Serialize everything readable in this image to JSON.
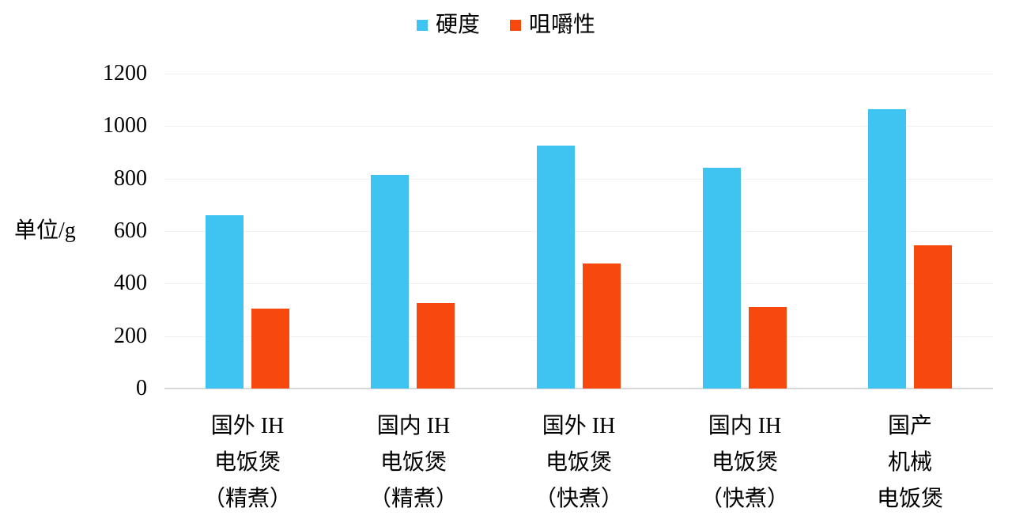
{
  "chart_data": {
    "type": "bar",
    "title": "",
    "ylabel": "单位/g",
    "xlabel": "",
    "ylim": [
      0,
      1200
    ],
    "ytick_step": 200,
    "yticks": [
      "0",
      "200",
      "400",
      "600",
      "800",
      "1000",
      "1200"
    ],
    "grid": true,
    "legend_position": "top-center",
    "categories": [
      "国外 IH 电饭煲（精煮）",
      "国内 IH 电饭煲（精煮）",
      "国外 IH 电饭煲（快煮）",
      "国内 IH 电饭煲（快煮）",
      "国产机械电饭煲"
    ],
    "category_lines": [
      [
        "国外 IH",
        "电饭煲",
        "（精煮）"
      ],
      [
        "国内 IH",
        "电饭煲",
        "（精煮）"
      ],
      [
        "国外 IH",
        "电饭煲",
        "（快煮）"
      ],
      [
        "国内 IH",
        "电饭煲",
        "（快煮）"
      ],
      [
        "国产",
        "机械",
        "电饭煲"
      ]
    ],
    "series": [
      {
        "name": "硬度",
        "color": "#3FC3F0",
        "values": [
          660,
          815,
          925,
          840,
          1065
        ]
      },
      {
        "name": "咀嚼性",
        "color": "#F7490D",
        "values": [
          305,
          325,
          475,
          310,
          545
        ]
      }
    ],
    "colors": {
      "grid": "#f1f1f1",
      "axis": "#d8d8d8",
      "text": "#000000",
      "background": "#ffffff"
    }
  }
}
